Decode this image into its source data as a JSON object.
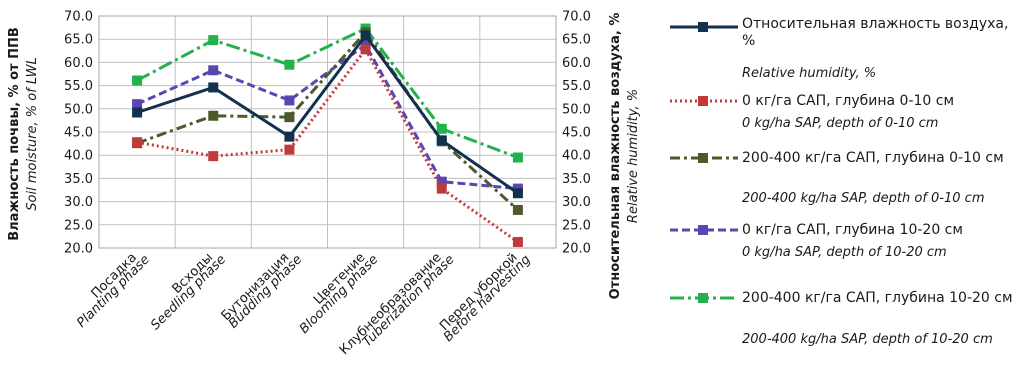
{
  "chart_data": {
    "type": "line",
    "categories": [
      {
        "ru": "Посадка",
        "en": "Planting phase"
      },
      {
        "ru": "Всходы",
        "en": "Seedling phase"
      },
      {
        "ru": "Бутонизация",
        "en": "Budding phase"
      },
      {
        "ru": "Цветение",
        "en": "Blooming phase"
      },
      {
        "ru": "Клубнеобразование",
        "en": "Tuberization phase"
      },
      {
        "ru": "Перед уборкой",
        "en": "Before harvesting"
      }
    ],
    "yleft_label_ru": "Влажность почвы, % от ППВ",
    "yleft_label_en": "Soil moisture, % of LWL",
    "yright_label_ru": "Относительная влажность воздуха, %",
    "yright_label_en": "Relative humidity, %",
    "ylim": [
      20,
      70
    ],
    "yticks": [
      "20.0",
      "25.0",
      "30.0",
      "35.0",
      "40.0",
      "45.0",
      "50.0",
      "55.0",
      "60.0",
      "65.0",
      "70.0"
    ],
    "grid": true,
    "legend_position": "right",
    "series": [
      {
        "name_ru": "Относительная влажность воздуха, %",
        "name_en": "Relative humidity, %",
        "values": [
          49.2,
          54.6,
          44.0,
          65.8,
          43.2,
          31.8
        ],
        "color": "#12314f",
        "dash": "solid"
      },
      {
        "name_ru": "0 кг/га САП, глубина 0-10 см",
        "name_en": "0 kg/ha SAP, depth of 0-10 cm",
        "values": [
          42.8,
          39.8,
          41.2,
          62.8,
          32.8,
          21.3
        ],
        "color": "#c0393b",
        "dash": "dot"
      },
      {
        "name_ru": "200-400 кг/га САП, глубина 0-10 см",
        "name_en": "200-400 kg/ha SAP, depth of 0-10 cm",
        "values": [
          42.6,
          48.5,
          48.2,
          66.5,
          43.0,
          28.2
        ],
        "color": "#4d5a2c",
        "dash": "dashdot"
      },
      {
        "name_ru": "0 кг/га САП, глубина 10-20 см",
        "name_en": "0 kg/ha SAP, depth of 10-20 cm",
        "values": [
          51.0,
          58.3,
          51.8,
          63.8,
          34.3,
          32.8
        ],
        "color": "#5a46b0",
        "dash": "dash"
      },
      {
        "name_ru": "200-400 кг/га САП, глубина 10-20 см",
        "name_en": "200-400 kg/ha SAP, depth of 10-20 cm",
        "values": [
          56.1,
          64.8,
          59.5,
          67.3,
          45.7,
          39.5
        ],
        "color": "#22b14c",
        "dash": "dashdotlong"
      }
    ]
  }
}
